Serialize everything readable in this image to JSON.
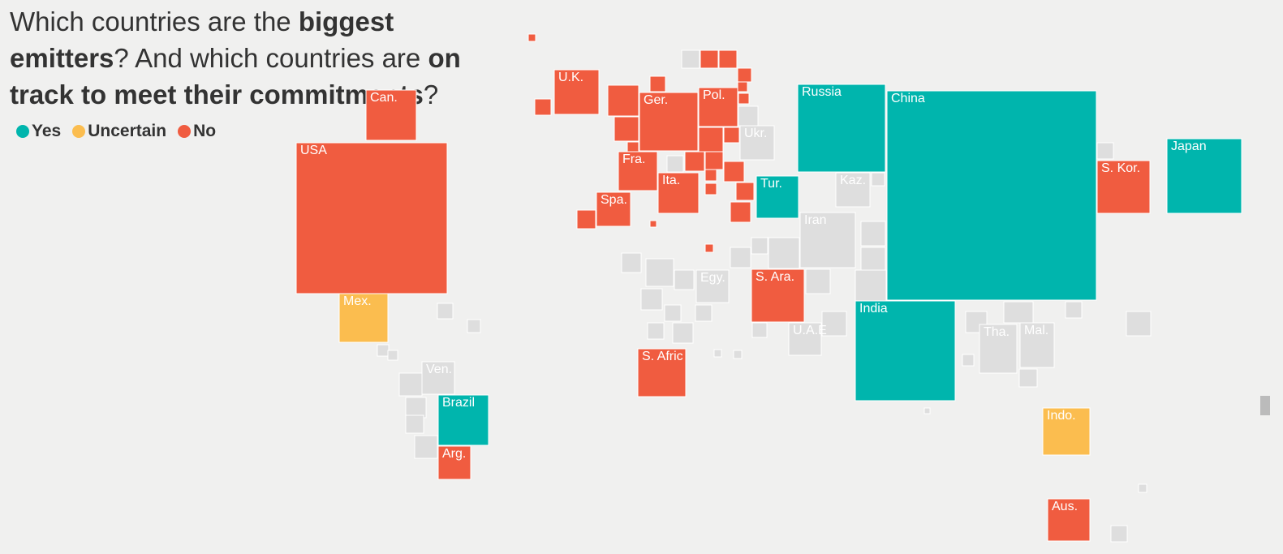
{
  "title": {
    "segments": [
      {
        "text": "Which countries are the ",
        "bold": false
      },
      {
        "text": "biggest emitters",
        "bold": true
      },
      {
        "text": "? And which countries are ",
        "bold": false
      },
      {
        "text": "on track to meet their commitments",
        "bold": true
      },
      {
        "text": "?",
        "bold": false
      }
    ]
  },
  "groups": [
    {
      "label": "Yes",
      "color": "#00b5ad",
      "countries": [
        "Russia",
        "China",
        "Japan",
        "Tur.",
        "India",
        "Brazil"
      ]
    },
    {
      "label": "Uncertain",
      "color": "#fbbd4f",
      "countries": [
        "Mex.",
        "Indo."
      ]
    },
    {
      "label": "No",
      "color": "#f05c40",
      "countries": [
        "USA",
        "Can.",
        "U.K.",
        "Ger.",
        "Pol.",
        "Fra.",
        "Ita.",
        "Spa.",
        "S. Ara.",
        "S. Afric",
        "S. Kor.",
        "Arg.",
        "Aus."
      ]
    }
  ],
  "unrated": {
    "color": "#dedede",
    "countries": [
      "Ukr.",
      "Kaz.",
      "Iran",
      "Egy.",
      "U.A.E",
      "Tha.",
      "Mal.",
      "Ven."
    ]
  }
}
